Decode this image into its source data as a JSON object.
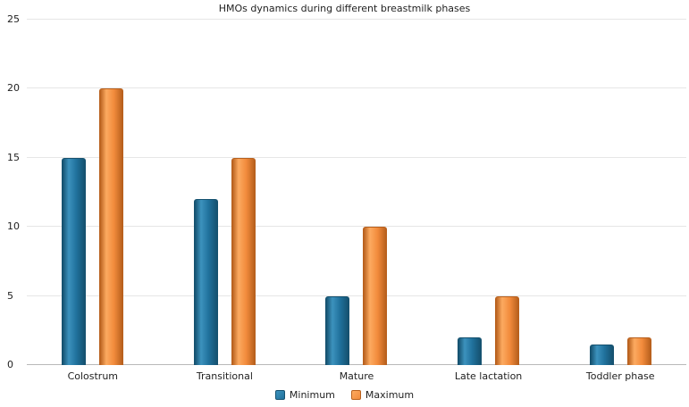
{
  "chart_data": {
    "type": "bar",
    "title": "HMOs dynamics during different breastmilk phases",
    "categories": [
      "Colostrum",
      "Transitional",
      "Mature",
      "Late lactation",
      "Toddler phase"
    ],
    "series": [
      {
        "name": "Minimum",
        "values": [
          15,
          12,
          5,
          2,
          1.5
        ],
        "color": "#20719c",
        "color_light": "#3c92bd",
        "color_dark": "#15516f"
      },
      {
        "name": "Maximum",
        "values": [
          20,
          15,
          10,
          5,
          2
        ],
        "color": "#f28b3c",
        "color_light": "#fcaa60",
        "color_dark": "#b8601d"
      }
    ],
    "xlabel": "",
    "ylabel": "",
    "ylim": [
      0,
      25
    ],
    "yticks": [
      0,
      5,
      10,
      15,
      20,
      25
    ],
    "grid": true,
    "legend_position": "bottom"
  }
}
